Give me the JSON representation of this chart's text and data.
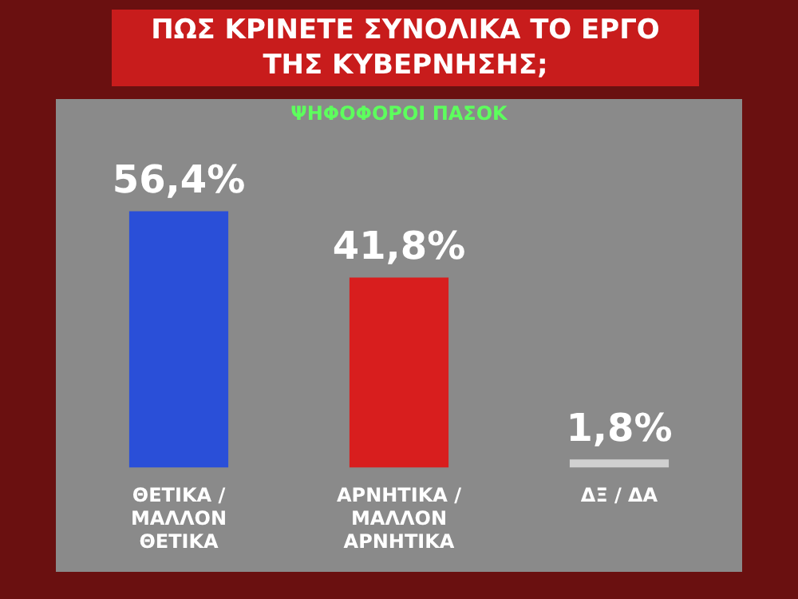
{
  "chart_data": {
    "type": "bar",
    "title": "ΠΩΣ ΚΡΙΝΕΤΕ ΣΥΝΟΛΙΚΑ ΤΟ ΕΡΓΟ ΤΗΣ ΚΥΒΕΡΝΗΣΗΣ;",
    "subtitle": "ΨΗΦΟΦΟΡΟΙ ΠΑΣΟΚ",
    "categories": [
      "ΘΕΤΙΚΑ / ΜΑΛΛΟΝ ΘΕΤΙΚΑ",
      "ΑΡΝΗΤΙΚΑ / ΜΑΛΛΟΝ ΑΡΝΗΤΙΚΑ",
      "ΔΞ / ΔΑ"
    ],
    "values": [
      56.4,
      41.8,
      1.8
    ],
    "colors": [
      "#2a4fd8",
      "#d81e1e",
      "#d0d0d0"
    ],
    "value_labels": [
      "56,4%",
      "41,8%",
      "1,8%"
    ],
    "tick_labels": "x",
    "grid": false,
    "legend": false
  }
}
